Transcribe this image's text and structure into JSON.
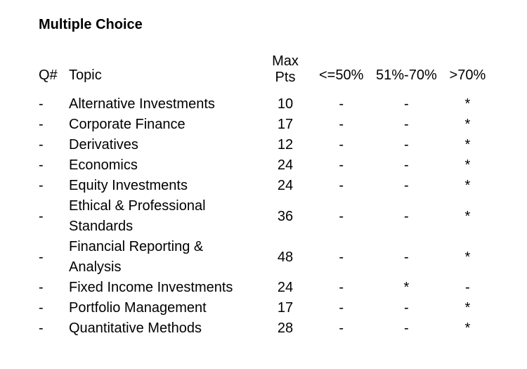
{
  "title": "Multiple Choice",
  "colors": {
    "text": "#000000",
    "background": "#ffffff"
  },
  "table": {
    "headers": {
      "q": "Q#",
      "topic": "Topic",
      "max_line1": "Max",
      "max_line2": "Pts",
      "le50": "<=50%",
      "mid": "51%-70%",
      "gt70": ">70%"
    },
    "rows": [
      {
        "q": "-",
        "topic": "Alternative Investments",
        "max": "10",
        "le50": "-",
        "mid": "-",
        "gt70": "*"
      },
      {
        "q": "-",
        "topic": "Corporate Finance",
        "max": "17",
        "le50": "-",
        "mid": "-",
        "gt70": "*"
      },
      {
        "q": "-",
        "topic": "Derivatives",
        "max": "12",
        "le50": "-",
        "mid": "-",
        "gt70": "*"
      },
      {
        "q": "-",
        "topic": "Economics",
        "max": "24",
        "le50": "-",
        "mid": "-",
        "gt70": "*"
      },
      {
        "q": "-",
        "topic": "Equity Investments",
        "max": "24",
        "le50": "-",
        "mid": "-",
        "gt70": "*"
      },
      {
        "q": "-",
        "topic": "Ethical & Professional Standards",
        "max": "36",
        "le50": "-",
        "mid": "-",
        "gt70": "*"
      },
      {
        "q": "-",
        "topic": "Financial Reporting & Analysis",
        "max": "48",
        "le50": "-",
        "mid": "-",
        "gt70": "*"
      },
      {
        "q": "-",
        "topic": "Fixed Income Investments",
        "max": "24",
        "le50": "-",
        "mid": "*",
        "gt70": "-"
      },
      {
        "q": "-",
        "topic": "Portfolio Management",
        "max": "17",
        "le50": "-",
        "mid": "-",
        "gt70": "*"
      },
      {
        "q": "-",
        "topic": "Quantitative Methods",
        "max": "28",
        "le50": "-",
        "mid": "-",
        "gt70": "*"
      }
    ]
  }
}
